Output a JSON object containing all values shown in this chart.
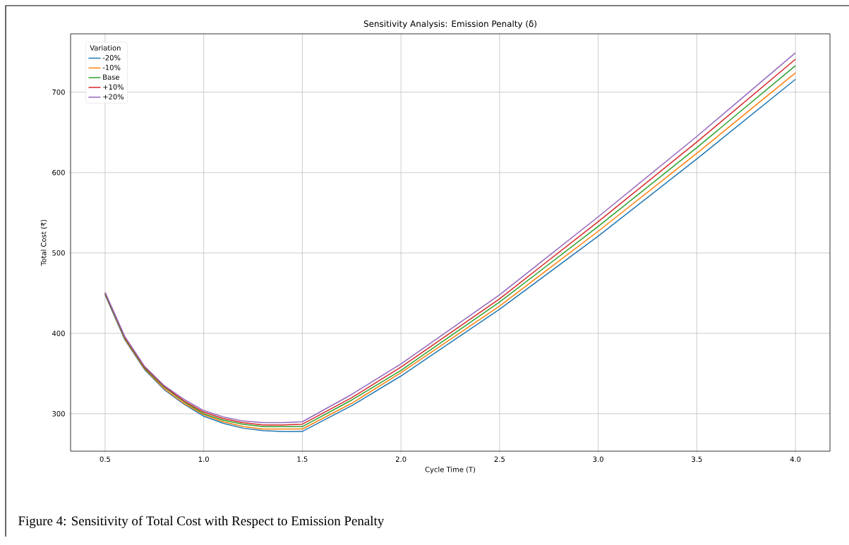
{
  "chart_data": {
    "type": "line",
    "title": "Sensitivity Analysis: Emission Penalty (δ)",
    "xlabel": "Cycle Time (T)",
    "ylabel": "Total Cost (₹)",
    "legend_title": "Variation",
    "annotations": [
      "Figure 4: Sensitivity of Total Cost with Respect to Emission Penalty"
    ],
    "x": [
      0.5,
      0.6,
      0.7,
      0.8,
      0.9,
      1.0,
      1.1,
      1.2,
      1.3,
      1.4,
      1.5,
      1.75,
      2.0,
      2.5,
      3.0,
      3.5,
      4.0
    ],
    "series": [
      {
        "name": "-20%",
        "color": "#1f77b4",
        "values": [
          448,
          392,
          355,
          330,
          312,
          297,
          288,
          282,
          279,
          278,
          278,
          310,
          347,
          430,
          521,
          617,
          716
        ]
      },
      {
        "name": "-10%",
        "color": "#ff7f0e",
        "values": [
          449,
          393,
          356,
          331,
          313,
          299,
          290,
          284,
          281,
          281,
          281,
          313,
          351,
          434,
          527,
          624,
          724
        ]
      },
      {
        "name": "Base",
        "color": "#2ca02c",
        "values": [
          449,
          394,
          357,
          333,
          315,
          300,
          292,
          287,
          284,
          284,
          284,
          317,
          354,
          439,
          533,
          631,
          733
        ]
      },
      {
        "name": "+10%",
        "color": "#d62728",
        "values": [
          450,
          395,
          358,
          334,
          316,
          302,
          294,
          289,
          286,
          286,
          287,
          320,
          358,
          443,
          539,
          638,
          741
        ]
      },
      {
        "name": "+20%",
        "color": "#9467bd",
        "values": [
          451,
          396,
          359,
          335,
          318,
          304,
          296,
          291,
          289,
          289,
          290,
          324,
          362,
          448,
          545,
          645,
          749
        ]
      }
    ],
    "xlim": [
      0.325,
      4.175
    ],
    "ylim": [
      253.4,
      772.6
    ],
    "xticks": [
      {
        "value": 0.5,
        "label": "0.5"
      },
      {
        "value": 1.0,
        "label": "1.0"
      },
      {
        "value": 1.5,
        "label": "1.5"
      },
      {
        "value": 2.0,
        "label": "2.0"
      },
      {
        "value": 2.5,
        "label": "2.5"
      },
      {
        "value": 3.0,
        "label": "3.0"
      },
      {
        "value": 3.5,
        "label": "3.5"
      },
      {
        "value": 4.0,
        "label": "4.0"
      }
    ],
    "yticks": [
      300,
      400,
      500,
      600,
      700
    ],
    "grid": true,
    "legend": "top left",
    "marker": "none",
    "line_style": "solid"
  }
}
